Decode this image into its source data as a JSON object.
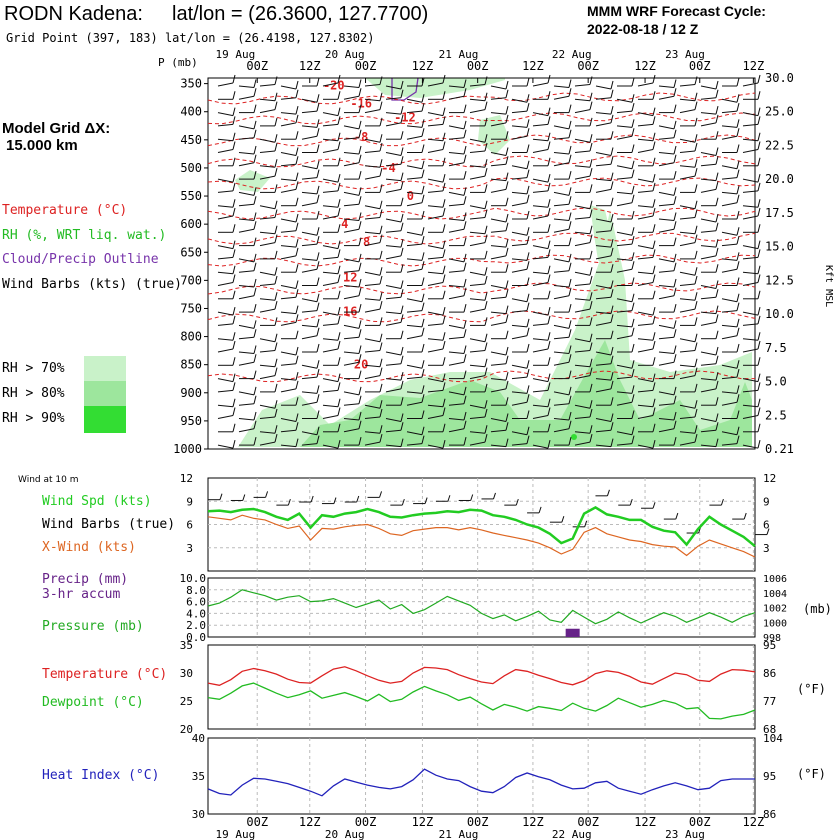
{
  "header": {
    "station": "RODN Kadena:",
    "latlon": "lat/lon = (26.3600, 127.7700)",
    "grid_point": "Grid Point (397, 183) lat/lon = (26.4198, 127.8302)",
    "model_cycle_label": "MMM WRF Forecast Cycle:",
    "model_cycle": "2022-08-18 / 12  Z",
    "grid_label": "Model Grid ΔX:",
    "grid_value": "15.000 km"
  },
  "legend": {
    "temperature": "Temperature (°C)",
    "rh": "RH (%, WRT liq. wat.)",
    "cloud": "Cloud/Precip Outline",
    "barbs": "Wind Barbs (kts) (true)",
    "rh_levels": [
      "RH > 70%",
      "RH > 80%",
      "RH > 90%"
    ],
    "rh_colors": [
      "#c9f2c9",
      "#9de69d",
      "#33dd33"
    ]
  },
  "colors": {
    "temperature": "#dd2222",
    "rh_light": "#c9f2c9",
    "rh_mid": "#9de69d",
    "rh_dark": "#33dd33",
    "cloud": "#7733aa",
    "wind_speed": "#22cc22",
    "x_wind": "#dd6622",
    "pressure": "#22aa22",
    "precip": "#662288",
    "dewpoint": "#22bb22",
    "heat_index": "#2222bb"
  },
  "time_axis": {
    "dates": [
      "19 Aug",
      "20 Aug",
      "21 Aug",
      "22 Aug",
      "23 Aug"
    ],
    "hours": [
      "00Z",
      "12Z",
      "00Z",
      "12Z",
      "00Z",
      "12Z",
      "00Z",
      "12Z",
      "00Z",
      "12Z"
    ]
  },
  "chart_data": [
    {
      "type": "cross-section",
      "ylabel": "P (mb)",
      "y2label": "Kft MSL",
      "pressure_levels": [
        350,
        400,
        450,
        500,
        550,
        600,
        650,
        700,
        750,
        800,
        850,
        900,
        950,
        1000
      ],
      "pressure_level_labels": [
        "350",
        "400",
        "450",
        "500",
        "550",
        "600",
        "650",
        "700",
        "750",
        "800",
        "850",
        "900",
        "950",
        "1000"
      ],
      "height_kft": [
        "30.0",
        "25.0",
        "22.5",
        "20.0",
        "17.5",
        "15.0",
        "12.5",
        "10.0",
        "7.5",
        "5.0",
        "2.5",
        "0.21"
      ],
      "temperature_contours": [
        {
          "label": "-20",
          "t": 0.23,
          "p": 353
        },
        {
          "label": "-16",
          "t": 0.28,
          "p": 385
        },
        {
          "label": "-12",
          "t": 0.36,
          "p": 410
        },
        {
          "label": "-8",
          "t": 0.28,
          "p": 445
        },
        {
          "label": "-4",
          "t": 0.33,
          "p": 500
        },
        {
          "label": "0",
          "t": 0.37,
          "p": 550
        },
        {
          "label": "4",
          "t": 0.25,
          "p": 600
        },
        {
          "label": "8",
          "t": 0.29,
          "p": 632
        },
        {
          "label": "12",
          "t": 0.26,
          "p": 695
        },
        {
          "label": "16",
          "t": 0.26,
          "p": 755
        },
        {
          "label": "20",
          "t": 0.28,
          "p": 850
        }
      ]
    },
    {
      "type": "line",
      "title": "Wind at 10 m",
      "series": [
        {
          "name": "Wind Spd (kts)",
          "values": [
            7.7,
            7.8,
            7.6,
            7.9,
            8.0,
            7.6,
            7.0,
            6.6,
            7.4,
            5.6,
            7.2,
            7.0,
            7.4,
            7.6,
            8.0,
            7.6,
            7.0,
            6.9,
            7.2,
            7.4,
            7.5,
            7.7,
            7.6,
            7.9,
            7.8,
            7.2,
            7.0,
            6.6,
            6.0,
            5.6,
            4.8,
            3.6,
            4.2,
            7.4,
            8.2,
            7.3,
            7.0,
            6.6,
            6.6,
            5.7,
            5.2,
            5.0,
            3.4,
            5.4,
            7.0,
            6.0,
            5.2,
            4.4,
            3.2
          ]
        },
        {
          "name": "X-Wind (kts)",
          "values": [
            7.0,
            6.8,
            6.6,
            7.2,
            6.8,
            6.6,
            6.0,
            5.5,
            5.8,
            4.0,
            5.5,
            5.4,
            5.7,
            5.9,
            6.0,
            5.5,
            4.8,
            4.6,
            5.2,
            5.4,
            5.6,
            5.6,
            5.3,
            5.6,
            5.3,
            4.9,
            4.6,
            4.3,
            4.0,
            3.6,
            3.0,
            2.2,
            2.8,
            5.0,
            5.6,
            4.8,
            4.4,
            4.0,
            3.8,
            3.4,
            3.2,
            3.1,
            2.0,
            3.2,
            4.0,
            3.5,
            3.0,
            2.5,
            1.8
          ]
        }
      ],
      "series_labels": [
        "Wind Spd (kts)",
        "Wind Barbs (true)",
        "X-Wind (kts)"
      ],
      "ylim": [
        0,
        12
      ],
      "y_ticks": [
        "3",
        "6",
        "9",
        "12"
      ]
    },
    {
      "type": "line",
      "series": [
        {
          "name": "Pressure (mb)",
          "values": [
            1002.2,
            1002.6,
            1003.4,
            1004.4,
            1004.0,
            1003.6,
            1003.0,
            1003.4,
            1003.6,
            1002.8,
            1002.9,
            1003.2,
            1002.6,
            1002.0,
            1002.5,
            1003.0,
            1001.8,
            1002.4,
            1001.2,
            1001.7,
            1002.6,
            1003.5,
            1002.9,
            1002.3,
            1001.2,
            1000.5,
            1001.0,
            1000.2,
            1000.8,
            1001.5,
            1000.3,
            1000.0,
            1001.6,
            1000.7,
            999.8,
            1000.4,
            1001.4,
            1000.6,
            999.9,
            1000.6,
            1001.3,
            1000.8,
            1000.0,
            1000.6,
            1001.3,
            1000.7,
            1000.0,
            1000.8,
            1001.3
          ]
        },
        {
          "name": "Precip (mm) 3-hr accum",
          "values": [
            0,
            0,
            0,
            0,
            0,
            0,
            0,
            0,
            0,
            0,
            0,
            0,
            0,
            0,
            0,
            0,
            0,
            0,
            0,
            0,
            0,
            0,
            0,
            0,
            0,
            0,
            0,
            0,
            0,
            0,
            0,
            0,
            1.4,
            0,
            0,
            0,
            0,
            0,
            0,
            0,
            0,
            0,
            0,
            0,
            0,
            0,
            0,
            0,
            0
          ]
        }
      ],
      "series_labels": [
        "Precip (mm)",
        "3-hr accum",
        "Pressure (mb)"
      ],
      "ylim_precip": [
        0,
        10
      ],
      "y_ticks_precip": [
        "0.0",
        "2.0",
        "4.0",
        "6.0",
        "8.0",
        "10.0"
      ],
      "ylim_pressure": [
        998,
        1006
      ],
      "y_ticks_pressure": [
        "998",
        "1000",
        "1002",
        "1004",
        "1006"
      ],
      "y2label": "(mb)"
    },
    {
      "type": "line",
      "series": [
        {
          "name": "Temperature (°C)",
          "values": [
            28.2,
            27.8,
            28.8,
            30.3,
            30.8,
            30.4,
            29.8,
            28.9,
            28.3,
            28.2,
            29.5,
            30.7,
            31.1,
            30.4,
            29.5,
            28.7,
            28.2,
            28.5,
            30.0,
            31.0,
            30.9,
            30.6,
            29.7,
            29.0,
            28.4,
            28.1,
            29.5,
            30.6,
            30.3,
            29.6,
            29.0,
            28.3,
            27.9,
            28.6,
            29.9,
            30.4,
            30.1,
            29.4,
            28.4,
            28.0,
            29.0,
            30.0,
            29.7,
            28.7,
            28.5,
            29.8,
            30.6,
            30.5,
            30.2
          ]
        },
        {
          "name": "Dewpoint (°C)",
          "values": [
            25.6,
            25.3,
            26.4,
            27.7,
            28.2,
            27.3,
            26.4,
            25.6,
            26.1,
            26.8,
            25.5,
            26.0,
            26.5,
            25.8,
            25.0,
            26.2,
            24.9,
            25.3,
            26.6,
            27.6,
            26.8,
            26.1,
            25.1,
            25.7,
            24.5,
            23.4,
            24.4,
            23.9,
            23.2,
            24.0,
            23.7,
            23.3,
            24.6,
            23.7,
            23.2,
            24.2,
            25.5,
            24.7,
            23.9,
            24.4,
            25.1,
            24.6,
            23.6,
            23.8,
            21.9,
            21.8,
            22.3,
            22.6,
            23.4
          ]
        }
      ],
      "series_labels": [
        "Temperature (°C)",
        "Dewpoint (°C)"
      ],
      "ylim": [
        20,
        35
      ],
      "y_ticks": [
        "20",
        "25",
        "30",
        "35"
      ],
      "y2_ticks": [
        "68",
        "77",
        "86",
        "95"
      ],
      "y2label": "(°F)"
    },
    {
      "type": "line",
      "series": [
        {
          "name": "Heat Index (°C)",
          "values": [
            33.3,
            32.7,
            32.5,
            33.8,
            34.7,
            34.6,
            34.3,
            34.0,
            33.5,
            33.0,
            32.4,
            33.7,
            34.6,
            34.2,
            33.8,
            33.5,
            33.3,
            33.6,
            34.5,
            35.9,
            35.1,
            34.6,
            34.4,
            33.6,
            33.0,
            32.8,
            33.6,
            34.8,
            35.4,
            34.9,
            34.5,
            33.8,
            33.3,
            33.4,
            34.1,
            34.3,
            33.4,
            33.0,
            32.6,
            33.2,
            33.7,
            34.1,
            33.7,
            33.2,
            33.4,
            34.4,
            34.6,
            34.6,
            34.6
          ]
        }
      ],
      "series_labels": [
        "Heat Index (°C)"
      ],
      "ylim": [
        30,
        40
      ],
      "y_ticks": [
        "30",
        "35",
        "40"
      ],
      "y2_ticks": [
        "86",
        "95",
        "104"
      ],
      "y2label": "(°F)"
    }
  ]
}
